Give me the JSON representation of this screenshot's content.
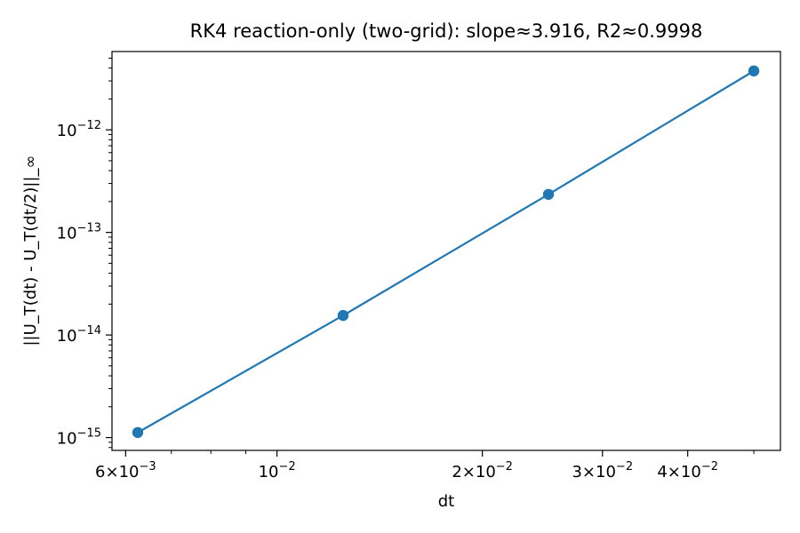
{
  "chart_data": {
    "type": "line",
    "title": "RK4 reaction-only (two-grid): slope≈3.916, R2≈0.9998",
    "xlabel": "dt",
    "ylabel": "||U_T(dt) - U_T(dt/2)||_∞",
    "xscale": "log",
    "yscale": "log",
    "xlim": [
      0.00573,
      0.0547
    ],
    "ylim": [
      7.5e-16,
      5.8e-12
    ],
    "grid": false,
    "legend": "none",
    "series": [
      {
        "x": [
          0.00625,
          0.0125,
          0.025,
          0.05
        ],
        "y": [
          1.12e-15,
          1.55e-14,
          2.35e-13,
          3.75e-12
        ],
        "marker": "circle",
        "color": "#1f77b4"
      }
    ],
    "x_major_ticks": [
      {
        "value": 0.006,
        "base": "6",
        "exp": "−3",
        "pre": "6×10"
      },
      {
        "value": 0.01,
        "base": "",
        "exp": "−2",
        "pre": "10"
      },
      {
        "value": 0.02,
        "base": "2",
        "exp": "−2",
        "pre": "2×10"
      },
      {
        "value": 0.03,
        "base": "3",
        "exp": "−2",
        "pre": "3×10"
      },
      {
        "value": 0.04,
        "base": "4",
        "exp": "−2",
        "pre": "4×10"
      }
    ],
    "x_minor_ticks": [
      0.007,
      0.008,
      0.009,
      0.05
    ],
    "y_major_ticks": [
      {
        "value": 1e-15,
        "pre": "10",
        "exp": "−15"
      },
      {
        "value": 1e-14,
        "pre": "10",
        "exp": "−14"
      },
      {
        "value": 1e-13,
        "pre": "10",
        "exp": "−13"
      },
      {
        "value": 1e-12,
        "pre": "10",
        "exp": "−12"
      }
    ]
  }
}
